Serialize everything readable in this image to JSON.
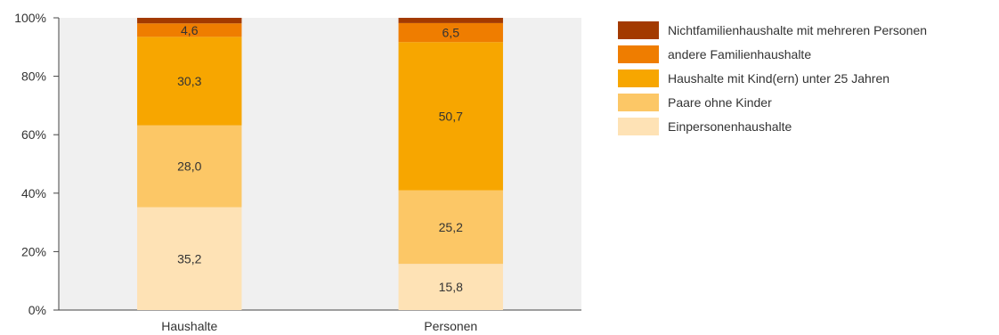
{
  "chart_data": {
    "type": "bar",
    "stacked": true,
    "categories": [
      "Haushalte",
      "Personen"
    ],
    "series": [
      {
        "name": "Einpersonenhaushalte",
        "values": [
          35.2,
          15.8
        ],
        "labels": [
          "35,2",
          "15,8"
        ],
        "color": "#fee2b5"
      },
      {
        "name": "Paare ohne Kinder",
        "values": [
          28.0,
          25.2
        ],
        "labels": [
          "28,0",
          "25,2"
        ],
        "color": "#fcc766"
      },
      {
        "name": "Haushalte mit Kind(ern) unter 25 Jahren",
        "values": [
          30.3,
          50.7
        ],
        "labels": [
          "30,3",
          "50,7"
        ],
        "color": "#f7a600"
      },
      {
        "name": "andere Familienhaushalte",
        "values": [
          4.6,
          6.5
        ],
        "labels": [
          "4,6",
          "6,5"
        ],
        "color": "#ef7d00"
      },
      {
        "name": "Nichtfamilienhaushalte mit mehreren Personen",
        "values": [
          1.9,
          1.8
        ],
        "labels": [
          "",
          ""
        ],
        "color": "#a33a00"
      }
    ],
    "ylim": [
      0,
      100
    ],
    "yticks": [
      "0%",
      "20%",
      "40%",
      "60%",
      "80%",
      "100%"
    ],
    "grid": false,
    "legend_position": "right",
    "legend_order": [
      4,
      3,
      2,
      1,
      0
    ],
    "plot_background": "#f0f0f0",
    "xlabel": "",
    "ylabel": "",
    "title": ""
  }
}
